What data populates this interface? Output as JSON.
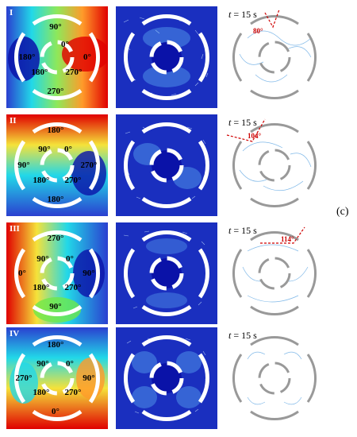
{
  "figure_label": "(c)",
  "time_label_var": "t",
  "time_label_value": "= 15 s",
  "colors": {
    "red": "#e00000",
    "blue": "#0a12a8",
    "cyan": "#22d8e8",
    "green": "#6ee84a",
    "yellow": "#f5e23a",
    "flow_bg": "#1a2fbf",
    "angle_line": "#d00000"
  },
  "rows": [
    {
      "roman": "I",
      "angles": [
        "90°",
        "0°",
        "180°",
        "0°",
        "180°",
        "270°",
        "270°"
      ],
      "inset_angle": "80°"
    },
    {
      "roman": "II",
      "angles": [
        "180°",
        "90°",
        "0°",
        "90°",
        "270°",
        "180°",
        "270°",
        "180°"
      ],
      "inset_angle": "104°"
    },
    {
      "roman": "III",
      "angles": [
        "270°",
        "90°",
        "0°",
        "0°",
        "90°",
        "180°",
        "270°",
        "90°"
      ],
      "inset_angle": "114°"
    },
    {
      "roman": "IV",
      "angles": [
        "180°",
        "90°",
        "0°",
        "270°",
        "90°",
        "180°",
        "270°",
        "0°"
      ],
      "inset_angle": ""
    }
  ]
}
